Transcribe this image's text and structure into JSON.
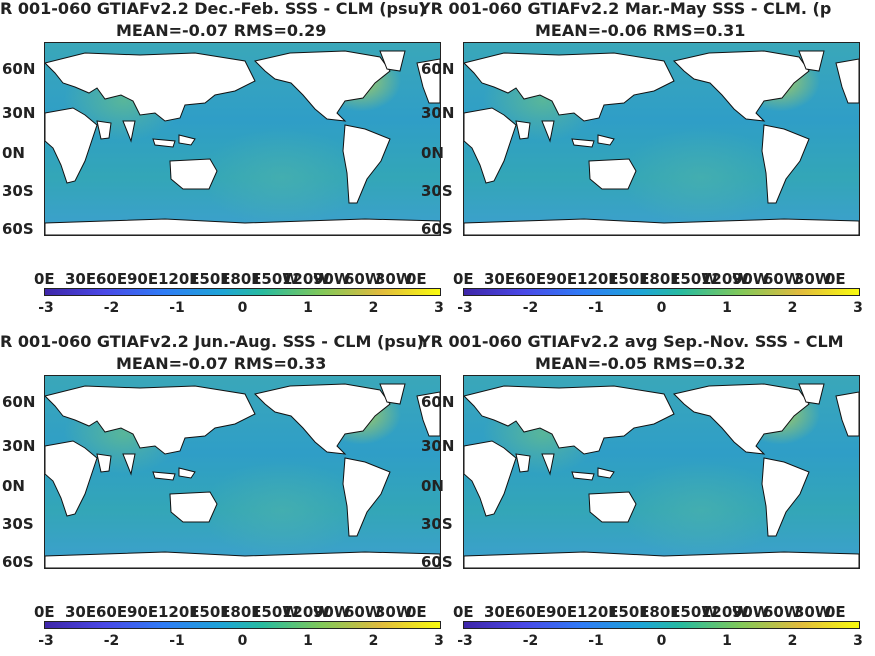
{
  "panels": [
    {
      "title1": "R 001-060 GTIAFv2.2  Dec.-Feb. SSS - CLM (psu)",
      "title2": "MEAN=-0.07   RMS=0.29"
    },
    {
      "title1": "YR 001-060 GTIAFv2.2 Mar.-May SSS - CLM. (p",
      "title2": "MEAN=-0.06   RMS=0.31"
    },
    {
      "title1": "R 001-060 GTIAFv2.2 Jun.-Aug. SSS - CLM (psu)",
      "title2": "MEAN=-0.07   RMS=0.33"
    },
    {
      "title1": "YR 001-060 GTIAFv2.2 avg Sep.-Nov. SSS - CLM",
      "title2": "MEAN=-0.05   RMS=0.32"
    }
  ],
  "y_ticks": [
    "60N",
    "30N",
    "0N",
    "30S",
    "60S"
  ],
  "x_ticks": [
    "0E",
    "30E",
    "60E",
    "90E",
    "120E",
    "150E",
    "180E",
    "150W",
    "120W",
    "90W",
    "60W",
    "30W",
    "0E"
  ],
  "colorbar_ticks": [
    "-3",
    "-2",
    "-1",
    "0",
    "1",
    "2",
    "3"
  ],
  "colors": {
    "colorbar_min": "#3e26a8",
    "colorbar_mid": "#28bb9f",
    "colorbar_max": "#f9fb0e"
  }
}
